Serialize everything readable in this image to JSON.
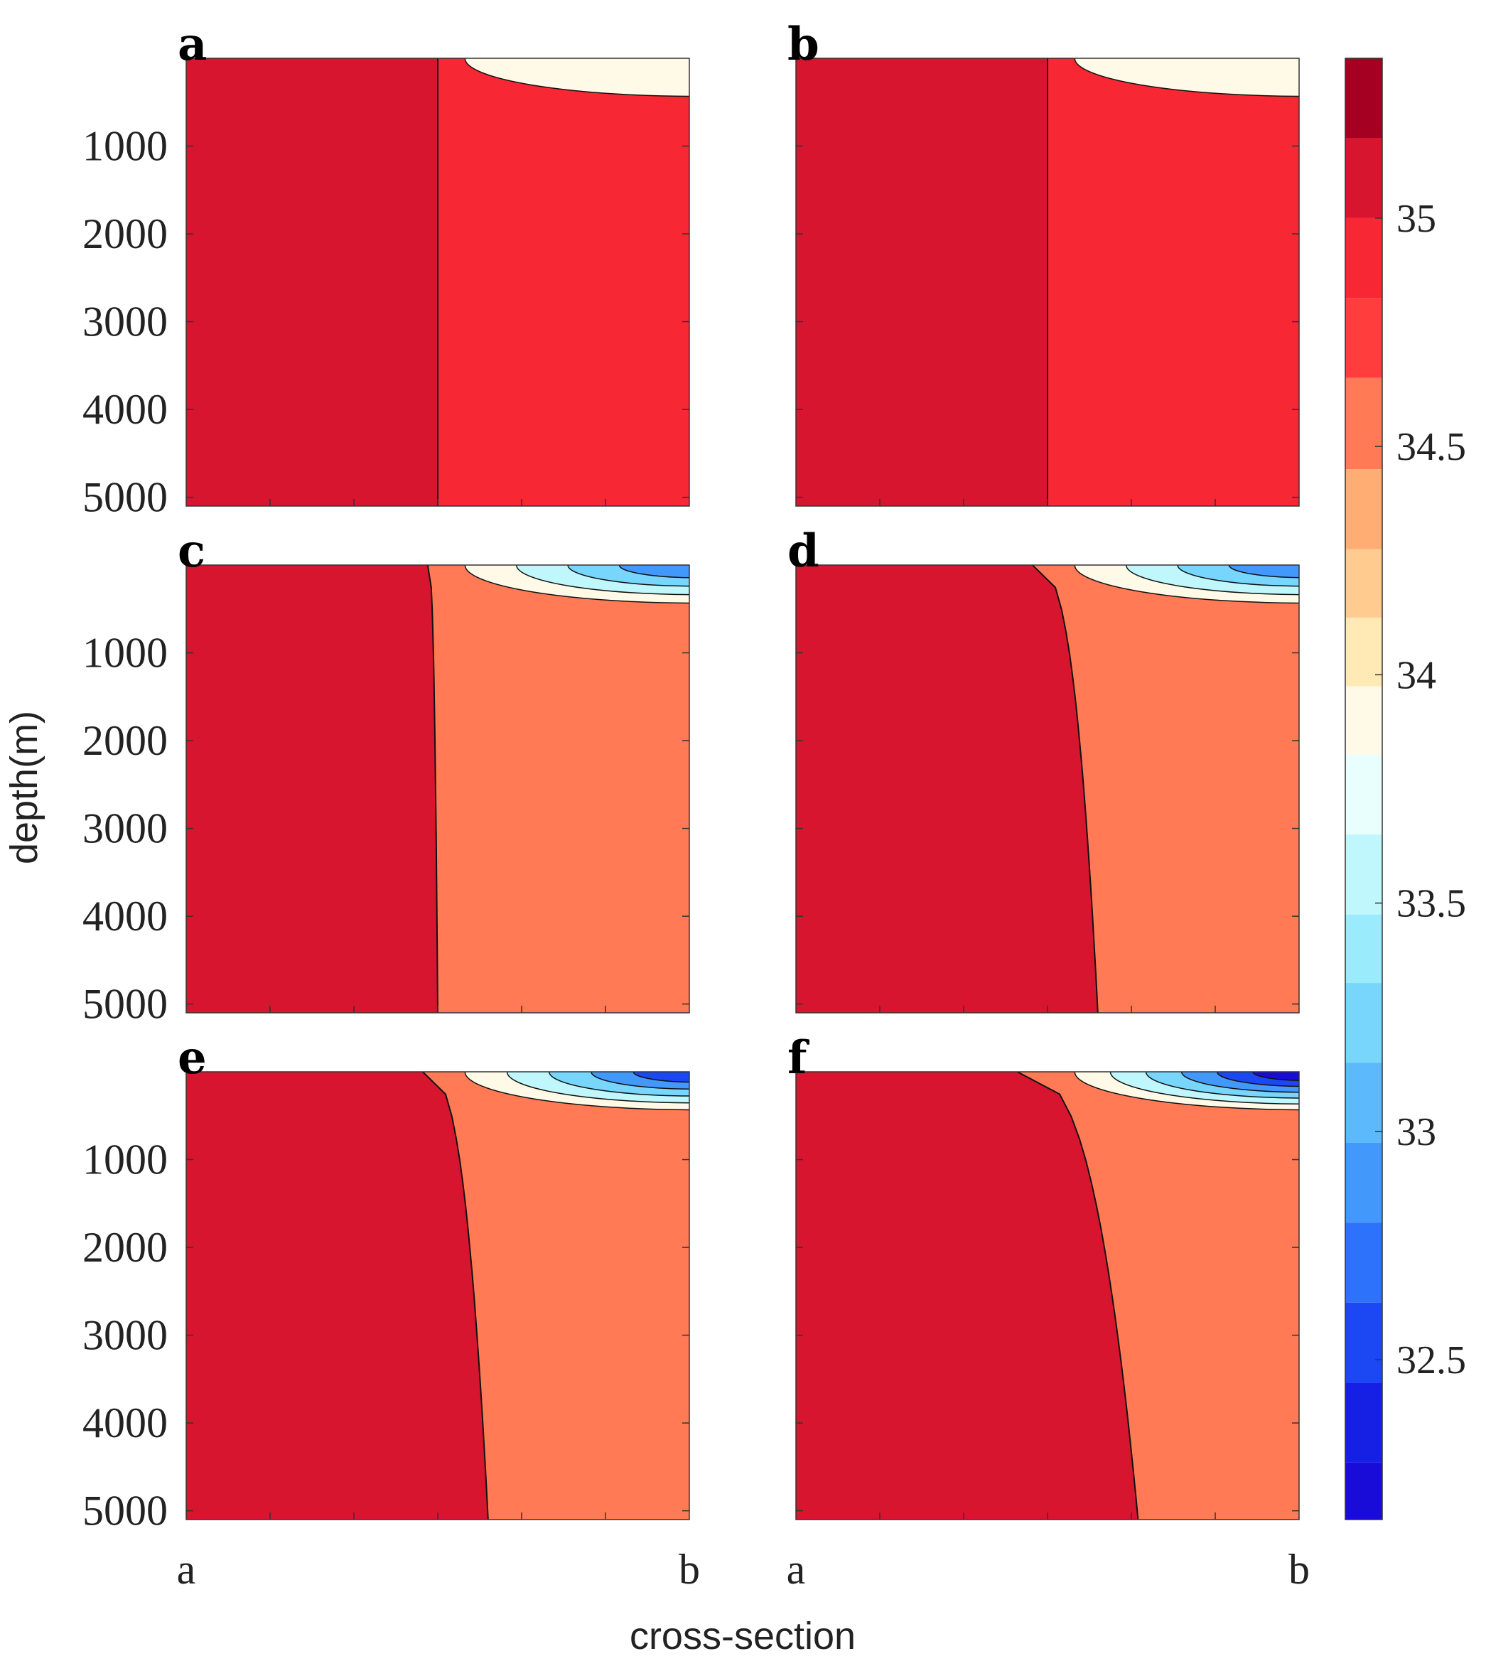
{
  "chart_data": {
    "type": "heatmap",
    "subtype": "filled-contour-small-multiples",
    "panels": [
      {
        "label": "a",
        "boundary_depth_top": [
          0,
          0.5
        ],
        "boundary_depth_bottom": [
          5100,
          0.5
        ],
        "surface_fresh_layers": 1,
        "left_region_value": 35.1,
        "right_region_value": 34.9
      },
      {
        "label": "b",
        "boundary_depth_top": [
          0,
          0.5
        ],
        "boundary_depth_bottom": [
          5100,
          0.5
        ],
        "surface_fresh_layers": 1,
        "left_region_value": 35.1,
        "right_region_value": 34.9
      },
      {
        "label": "c",
        "boundary_depth_top": [
          0,
          0.48
        ],
        "boundary_depth_bottom": [
          5100,
          0.5
        ],
        "surface_fresh_layers": 4,
        "left_region_value": 35.1,
        "right_region_value": 34.6
      },
      {
        "label": "d",
        "boundary_depth_top": [
          0,
          0.47
        ],
        "boundary_depth_bottom": [
          5100,
          0.6
        ],
        "surface_fresh_layers": 4,
        "left_region_value": 35.1,
        "right_region_value": 34.6
      },
      {
        "label": "e",
        "boundary_depth_top": [
          0,
          0.47
        ],
        "boundary_depth_bottom": [
          5100,
          0.6
        ],
        "surface_fresh_layers": 5,
        "left_region_value": 35.1,
        "right_region_value": 34.6
      },
      {
        "label": "f",
        "boundary_depth_top": [
          0,
          0.44
        ],
        "boundary_depth_bottom": [
          5100,
          0.68
        ],
        "surface_fresh_layers": 6,
        "left_region_value": 35.1,
        "right_region_value": 34.6
      }
    ],
    "y_axis": {
      "label": "depth(m)",
      "ticks": [
        "1000",
        "2000",
        "3000",
        "4000",
        "5000"
      ],
      "range": [
        0,
        5100
      ],
      "reversed": true
    },
    "x_axis": {
      "label": "cross-section",
      "start_label": "a",
      "end_label": "b"
    },
    "colorbar": {
      "range": [
        32.15,
        35.35
      ],
      "ticks": [
        "32.5",
        "33",
        "33.5",
        "34",
        "34.5",
        "35"
      ],
      "levels": [
        {
          "value": 35.25,
          "color": "#a50021"
        },
        {
          "value": 35.1,
          "color": "#d7152f"
        },
        {
          "value": 34.9,
          "color": "#f72733"
        },
        {
          "value": 34.75,
          "color": "#ff3d3d"
        },
        {
          "value": 34.55,
          "color": "#ff7a55"
        },
        {
          "value": 34.35,
          "color": "#ffad72"
        },
        {
          "value": 34.2,
          "color": "#ffcb8f"
        },
        {
          "value": 34.05,
          "color": "#ffeab6"
        },
        {
          "value": 33.9,
          "color": "#fffae8"
        },
        {
          "value": 33.75,
          "color": "#e8fffe"
        },
        {
          "value": 33.55,
          "color": "#c0f7fc"
        },
        {
          "value": 33.4,
          "color": "#9aecfc"
        },
        {
          "value": 33.25,
          "color": "#78d6fc"
        },
        {
          "value": 33.05,
          "color": "#5cb9fc"
        },
        {
          "value": 32.9,
          "color": "#4398fc"
        },
        {
          "value": 32.7,
          "color": "#2d72fb"
        },
        {
          "value": 32.55,
          "color": "#1c48f4"
        },
        {
          "value": 32.35,
          "color": "#1520e4"
        },
        {
          "value": 32.2,
          "color": "#1a0cd8"
        }
      ]
    }
  }
}
